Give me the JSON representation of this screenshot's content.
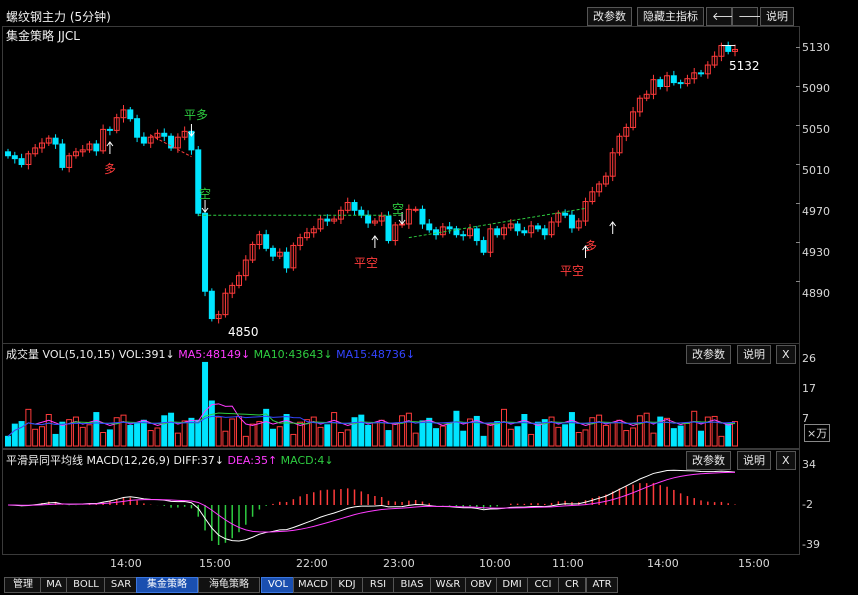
{
  "header": {
    "title": "螺纹钢主力 (5分钟)",
    "strategy": "集金策略 JJCL",
    "buttons": [
      "改参数",
      "隐藏主指标",
      "🡐",
      "🡒",
      "说明"
    ]
  },
  "price_axis": [
    "5130",
    "5090",
    "5050",
    "5010",
    "4970",
    "4930",
    "4890"
  ],
  "annotations": {
    "high_label": "5132",
    "low_label": "4850",
    "signals": [
      {
        "text": "平多",
        "color": "#2ecc40"
      },
      {
        "text": "多",
        "color": "#ff3b3b"
      },
      {
        "text": "空",
        "color": "#2ecc40"
      },
      {
        "text": "平空",
        "color": "#ff3b3b"
      },
      {
        "text": "空",
        "color": "#2ecc40"
      },
      {
        "text": "平空",
        "color": "#ff3b3b"
      },
      {
        "text": "多",
        "color": "#ff3b3b"
      }
    ]
  },
  "volume": {
    "title": "成交量",
    "params": "VOL(5,10,15)",
    "vol": "VOL:391↓",
    "ma5": "MA5:48149↓",
    "ma10": "MA10:43643↓",
    "ma15": "MA15:48736↓",
    "buttons": [
      "改参数",
      "说明",
      "X"
    ],
    "axis": [
      "26",
      "17",
      "7"
    ],
    "unit": "×万"
  },
  "macd": {
    "title": "平滑异同平均线",
    "params": "MACD(12,26,9)",
    "diff": "DIFF:37↓",
    "dea": "DEA:35↑",
    "macd": "MACD:4↓",
    "buttons": [
      "改参数",
      "说明",
      "X"
    ],
    "axis": [
      "34",
      "-2",
      "-39"
    ]
  },
  "time_axis": [
    "14:00",
    "15:00",
    "22:00",
    "23:00",
    "10:00",
    "11:00",
    "14:00",
    "15:00"
  ],
  "toolbar": [
    "管理",
    "MA",
    "BOLL",
    "SAR",
    "集金策略",
    "海龟策略",
    "VOL",
    "MACD",
    "KDJ",
    "RSI",
    "BIAS",
    "W&R",
    "OBV",
    "DMI",
    "CCI",
    "CR",
    "ATR"
  ],
  "colors": {
    "up": "#ff3b3b",
    "down": "#00e5ff",
    "ma5": "#ff3bff",
    "ma10": "#2ecc40",
    "ma15": "#3344ff",
    "dea": "#ff3bff",
    "diff": "#ffffff"
  },
  "chart_data": {
    "type": "candlestick",
    "y_unit": "price",
    "ylim": [
      4850,
      5132
    ],
    "close": [
      5019,
      5016,
      5010,
      5021,
      5027,
      5032,
      5037,
      5031,
      5007,
      5019,
      5023,
      5025,
      5031,
      5024,
      5046,
      5045,
      5058,
      5066,
      5057,
      5038,
      5032,
      5038,
      5042,
      5039,
      5027,
      5038,
      5044,
      5025,
      4960,
      4880,
      4852,
      4856,
      4878,
      4886,
      4896,
      4912,
      4928,
      4938,
      4924,
      4916,
      4920,
      4904,
      4927,
      4935,
      4940,
      4944,
      4954,
      4952,
      4954,
      4963,
      4971,
      4963,
      4958,
      4950,
      4952,
      4957,
      4932,
      4948,
      4949,
      4964,
      4964,
      4949,
      4943,
      4938,
      4946,
      4944,
      4938,
      4937,
      4944,
      4932,
      4920,
      4944,
      4938,
      4945,
      4949,
      4942,
      4940,
      4947,
      4944,
      4938,
      4951,
      4960,
      4958,
      4945,
      4952,
      4972,
      4982,
      4990,
      4998,
      5022,
      5039,
      5048,
      5064,
      5078,
      5082,
      5097,
      5090,
      5101,
      5094,
      5093,
      5098,
      5104,
      5103,
      5112,
      5121,
      5132,
      5126,
      5128
    ]
  }
}
